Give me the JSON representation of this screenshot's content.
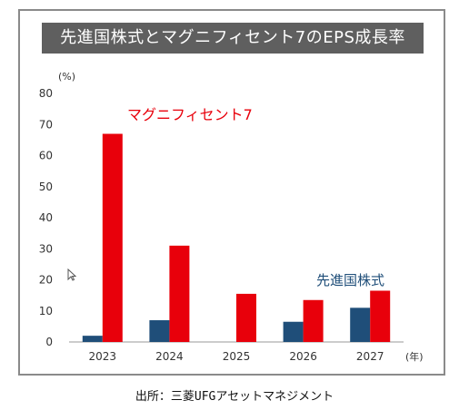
{
  "chart_data": {
    "type": "bar",
    "title": "先進国株式とマグニフィセント7のEPS成長率",
    "y_unit_label": "(%)",
    "x_unit_label": "(年)",
    "categories": [
      "2023",
      "2024",
      "2025",
      "2026",
      "2027"
    ],
    "y_ticks": [
      0,
      10,
      20,
      30,
      40,
      50,
      60,
      70,
      80
    ],
    "ylim": [
      0,
      80
    ],
    "series": [
      {
        "name": "先進国株式",
        "color": "#1f4e79",
        "values": [
          2,
          7,
          0,
          6.5,
          11
        ]
      },
      {
        "name": "マグニフィセント7",
        "color": "#e8000b",
        "values": [
          67,
          31,
          15.5,
          13.5,
          16.5
        ]
      }
    ]
  },
  "source_text": "出所：三菱UFGアセットマネジメント"
}
